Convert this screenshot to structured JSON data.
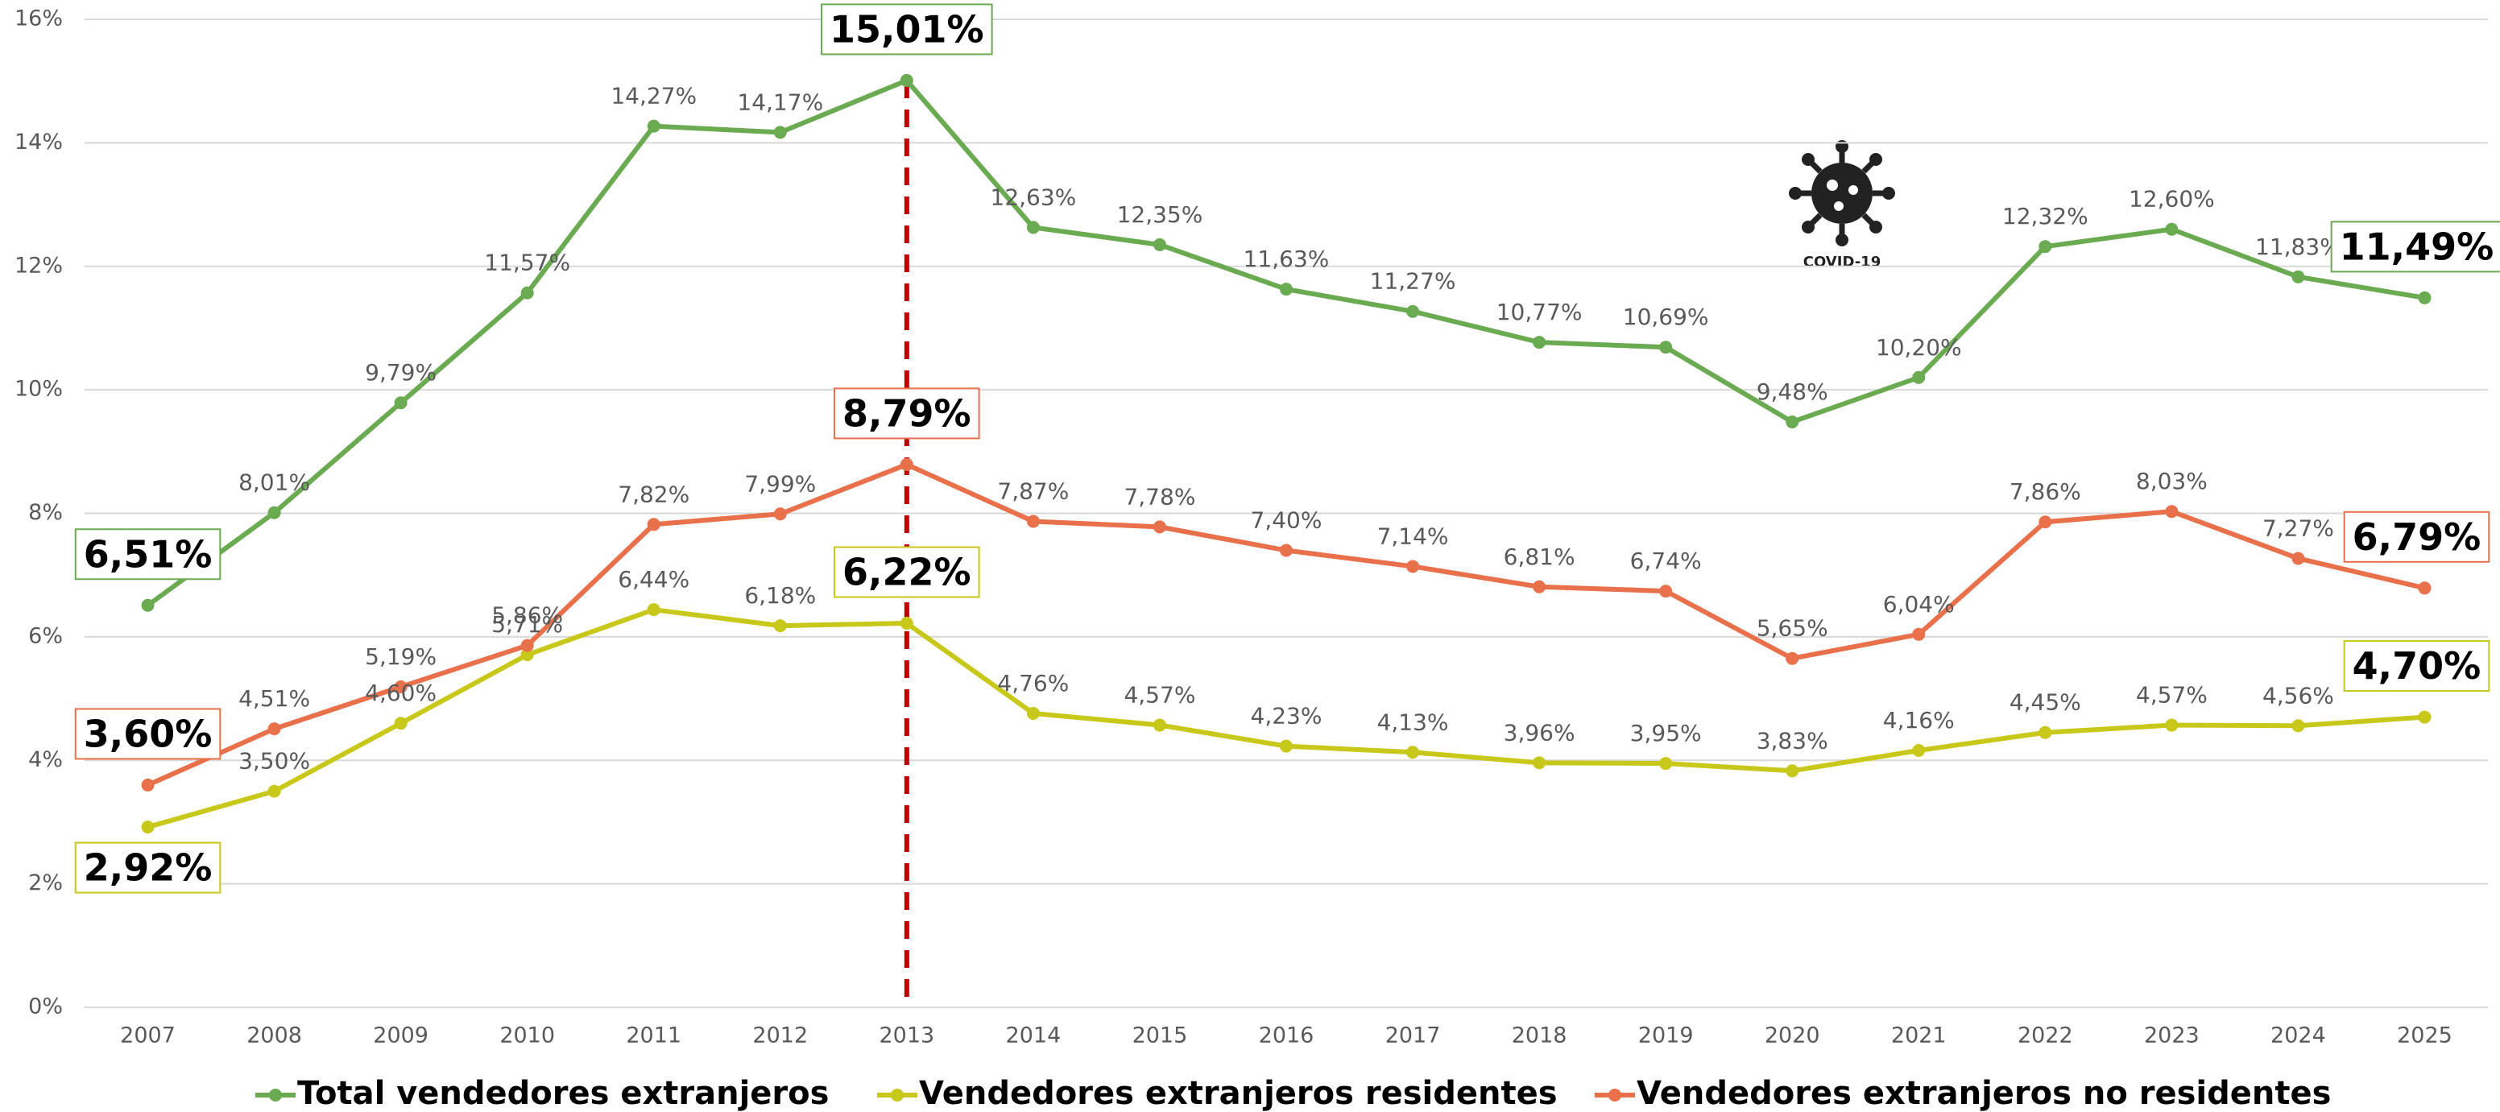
{
  "chart_data": {
    "type": "line",
    "categories": [
      "2007",
      "2008",
      "2009",
      "2010",
      "2011",
      "2012",
      "2013",
      "2014",
      "2015",
      "2016",
      "2017",
      "2018",
      "2019",
      "2020",
      "2021",
      "2022",
      "2023",
      "2024",
      "2025"
    ],
    "series": [
      {
        "name": "Total vendedores extranjeros",
        "color": "#6aaa50",
        "values": [
          6.51,
          8.01,
          9.79,
          11.57,
          14.27,
          14.17,
          15.01,
          12.63,
          12.35,
          11.63,
          11.27,
          10.77,
          10.69,
          9.48,
          10.2,
          12.32,
          12.6,
          11.83,
          11.49
        ],
        "value_labels": [
          "6,51%",
          "8,01%",
          "9,79%",
          "11,57%",
          "14,27%",
          "14,17%",
          "15,01%",
          "12,63%",
          "12,35%",
          "11,63%",
          "11,27%",
          "10,77%",
          "10,69%",
          "9,48%",
          "10,20%",
          "12,32%",
          "12,60%",
          "11,83%",
          "11,49%"
        ]
      },
      {
        "name": "Vendedores extranjeros residentes",
        "color": "#c8c81a",
        "values": [
          2.92,
          3.5,
          4.6,
          5.71,
          6.44,
          6.18,
          6.22,
          4.76,
          4.57,
          4.23,
          4.13,
          3.96,
          3.95,
          3.83,
          4.16,
          4.45,
          4.57,
          4.56,
          4.7
        ],
        "value_labels": [
          "2,92%",
          "3,50%",
          "4,60%",
          "5,71%",
          "6,44%",
          "6,18%",
          "6,22%",
          "4,76%",
          "4,57%",
          "4,23%",
          "4,13%",
          "3,96%",
          "3,95%",
          "3,83%",
          "4,16%",
          "4,45%",
          "4,57%",
          "4,56%",
          "4,70%"
        ]
      },
      {
        "name": "Vendedores extranjeros no residentes",
        "color": "#e8704a",
        "values": [
          3.6,
          4.51,
          5.19,
          5.86,
          7.82,
          7.99,
          8.79,
          7.87,
          7.78,
          7.4,
          7.14,
          6.81,
          6.74,
          5.65,
          6.04,
          7.86,
          8.03,
          7.27,
          6.79
        ],
        "value_labels": [
          "3,60%",
          "4,51%",
          "5,19%",
          "5,86%",
          "7,82%",
          "7,99%",
          "8,79%",
          "7,87%",
          "7,78%",
          "7,40%",
          "7,14%",
          "6,81%",
          "6,74%",
          "5,65%",
          "6,04%",
          "7,86%",
          "8,03%",
          "7,27%",
          "6,79%"
        ]
      }
    ],
    "ylim": [
      0,
      16
    ],
    "yticks": [
      {
        "value": 0,
        "label": "0%"
      },
      {
        "value": 2,
        "label": "2%"
      },
      {
        "value": 4,
        "label": "4%"
      },
      {
        "value": 6,
        "label": "6%"
      },
      {
        "value": 8,
        "label": "8%"
      },
      {
        "value": 10,
        "label": "10%"
      },
      {
        "value": 12,
        "label": "12%"
      },
      {
        "value": 14,
        "label": "14%"
      },
      {
        "value": 16,
        "label": "16%"
      }
    ],
    "grid": true,
    "legend": "bottom",
    "emphasized_categories": [
      "2007",
      "2013",
      "2025"
    ],
    "reference_line": {
      "category": "2013",
      "color": "#c00000"
    },
    "annotation": "COVID-19"
  }
}
